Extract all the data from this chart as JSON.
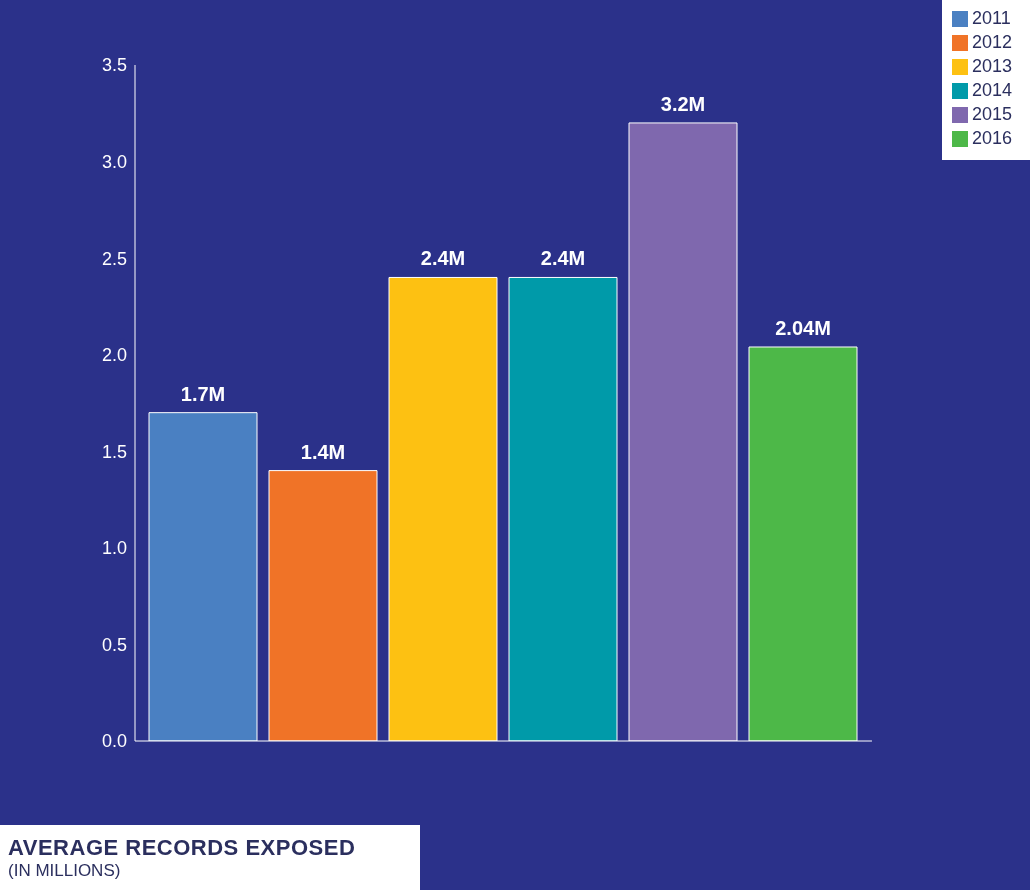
{
  "chart_data": {
    "type": "bar",
    "title": "AVERAGE RECORDS EXPOSED",
    "subtitle": "(IN MILLIONS)",
    "categories": [
      null
    ],
    "series": [
      {
        "name": "2011",
        "color": "#4a80c2",
        "values": [
          1.7
        ],
        "value_labels": [
          "1.7M"
        ]
      },
      {
        "name": "2012",
        "color": "#f07327",
        "values": [
          1.4
        ],
        "value_labels": [
          "1.4M"
        ]
      },
      {
        "name": "2013",
        "color": "#fdc112",
        "values": [
          2.4
        ],
        "value_labels": [
          "2.4M"
        ]
      },
      {
        "name": "2014",
        "color": "#009aa9",
        "values": [
          2.4
        ],
        "value_labels": [
          "2.4M"
        ]
      },
      {
        "name": "2015",
        "color": "#7f68ae",
        "values": [
          3.2
        ],
        "value_labels": [
          "3.2M"
        ]
      },
      {
        "name": "2016",
        "color": "#4db848",
        "values": [
          2.04
        ],
        "value_labels": [
          "2.04M"
        ]
      }
    ],
    "ylim": [
      0,
      3.5
    ],
    "yticks": [
      {
        "value": 0,
        "label": "0.0"
      },
      {
        "value": 0.5,
        "label": "0.5"
      },
      {
        "value": 1,
        "label": "1.0"
      },
      {
        "value": 1.5,
        "label": "1.5"
      },
      {
        "value": 2,
        "label": "2.0"
      },
      {
        "value": 2.5,
        "label": "2.5"
      },
      {
        "value": 3,
        "label": "3.0"
      },
      {
        "value": 3.5,
        "label": "3.5"
      }
    ],
    "legend": "top right",
    "grid": false
  }
}
